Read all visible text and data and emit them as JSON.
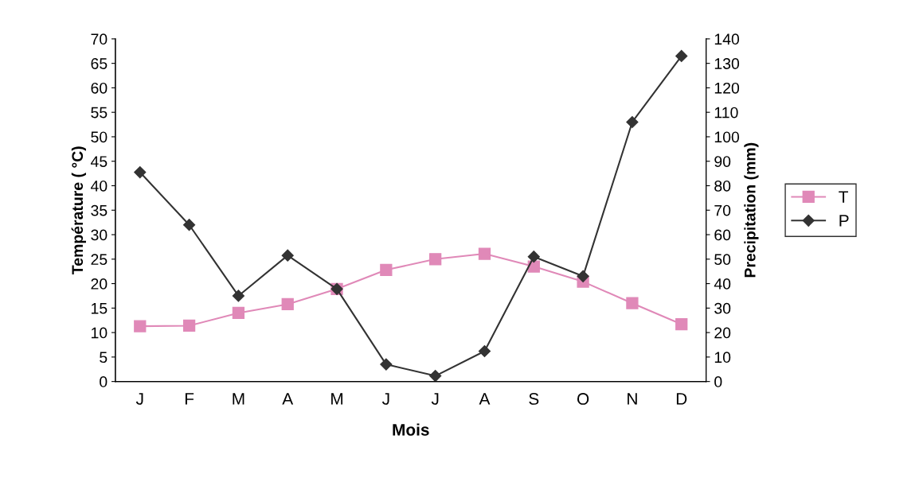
{
  "chart_data": {
    "type": "line",
    "xlabel": "Mois",
    "ylabel": "Température ( °C)",
    "y2label": "Precipitation (mm)",
    "categories": [
      "J",
      "F",
      "M",
      "A",
      "M",
      "J",
      "J",
      "A",
      "S",
      "O",
      "N",
      "D"
    ],
    "series": [
      {
        "name": "T",
        "color": "#e089b8",
        "marker": "square",
        "values": [
          11.3,
          11.4,
          14,
          15.8,
          18.9,
          22.8,
          25,
          26.1,
          23.5,
          20.4,
          16,
          11.7
        ]
      },
      {
        "name": "P",
        "color": "#333333",
        "marker": "diamond",
        "axis": "y2",
        "values": [
          85.5,
          64,
          35,
          51.5,
          37.8,
          7,
          2.3,
          12.4,
          51,
          43,
          106,
          133
        ]
      }
    ],
    "ylim": [
      0,
      70
    ],
    "yticks": [
      0,
      5,
      10,
      15,
      20,
      25,
      30,
      35,
      40,
      45,
      50,
      55,
      60,
      65,
      70
    ],
    "y2lim": [
      0,
      140
    ],
    "y2ticks": [
      0,
      10,
      20,
      30,
      40,
      50,
      60,
      70,
      80,
      90,
      100,
      110,
      120,
      130,
      140
    ],
    "grid": false,
    "legend": "right",
    "line_style": "solid"
  }
}
